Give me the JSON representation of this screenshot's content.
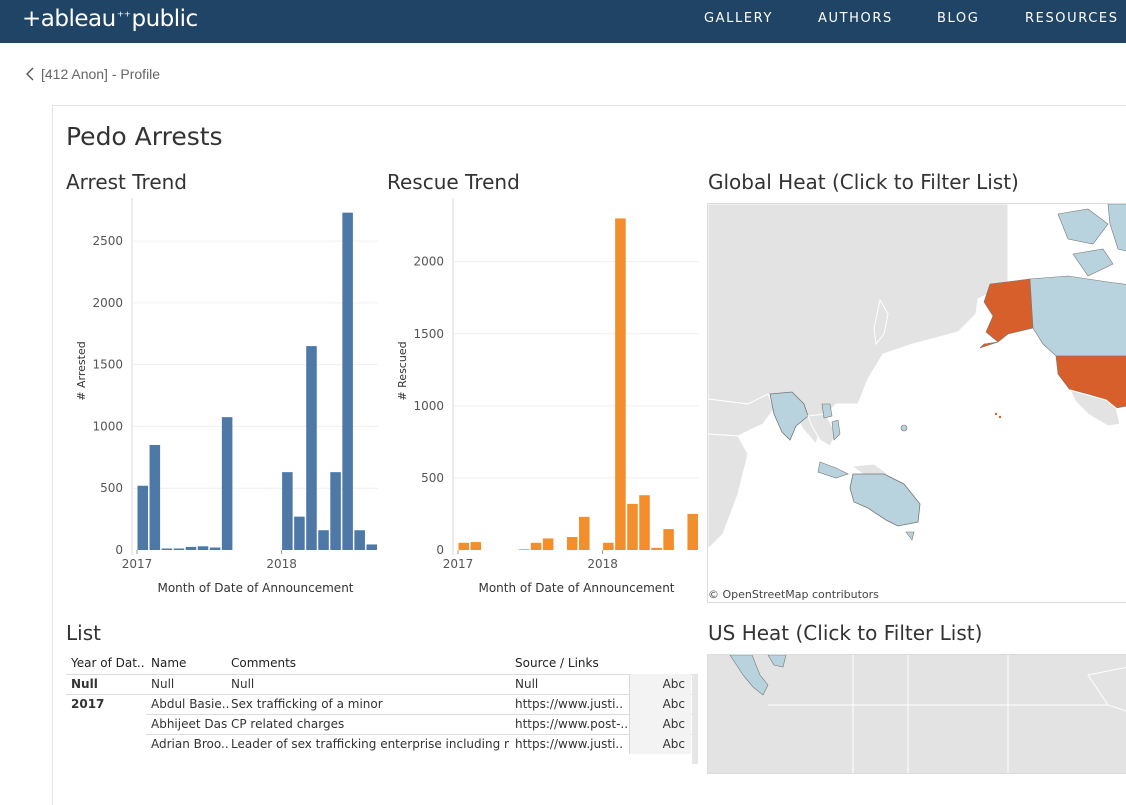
{
  "header": {
    "logo": "+ableau",
    "logo_rest": "public",
    "nav": [
      "GALLERY",
      "AUTHORS",
      "BLOG",
      "RESOURCES"
    ]
  },
  "breadcrumb": {
    "label": "[412 Anon] - Profile"
  },
  "dashboard": {
    "title": "Pedo Arrests",
    "arrest_title": "Arrest Trend",
    "rescue_title": "Rescue Trend",
    "global_title": "Global Heat (Click to Filter List)",
    "us_title": "US Heat (Click to Filter List)",
    "list_title": "List",
    "osm_credit": "© OpenStreetMap contributors"
  },
  "colors": {
    "arrest": "#4e79a7",
    "rescue": "#f28e2b",
    "highlight": "#d65f2c",
    "land_selected": "#b8d3dd",
    "land": "#e3e3e3"
  },
  "chart_data": [
    {
      "type": "bar",
      "title": "Arrest Trend",
      "xlabel": "Month of Date of Announcement",
      "ylabel": "# Arrested",
      "ylim": [
        0,
        2800
      ],
      "yticks": [
        0,
        500,
        1000,
        1500,
        2000,
        2500
      ],
      "xticks": [
        "2017",
        "2018"
      ],
      "x": [
        "2017-01",
        "2017-02",
        "2017-03",
        "2017-04",
        "2017-05",
        "2017-06",
        "2017-07",
        "2017-08",
        "2017-09",
        "2017-10",
        "2017-11",
        "2017-12",
        "2018-01",
        "2018-02",
        "2018-03",
        "2018-04",
        "2018-05",
        "2018-06",
        "2018-07",
        "2018-08"
      ],
      "values": [
        520,
        850,
        12,
        12,
        25,
        30,
        20,
        1075,
        0,
        0,
        0,
        0,
        630,
        270,
        1650,
        160,
        630,
        2730,
        160,
        45
      ]
    },
    {
      "type": "bar",
      "title": "Rescue Trend",
      "xlabel": "Month of Date of Announcement",
      "ylabel": "# Rescued",
      "ylim": [
        0,
        2400
      ],
      "yticks": [
        0,
        500,
        1000,
        1500,
        2000
      ],
      "xticks": [
        "2017",
        "2018"
      ],
      "x": [
        "2017-01",
        "2017-02",
        "2017-03",
        "2017-04",
        "2017-05",
        "2017-06",
        "2017-07",
        "2017-08",
        "2017-09",
        "2017-10",
        "2017-11",
        "2017-12",
        "2018-01",
        "2018-02",
        "2018-03",
        "2018-04",
        "2018-05",
        "2018-06",
        "2018-07",
        "2018-08"
      ],
      "values": [
        50,
        55,
        0,
        0,
        0,
        5,
        50,
        80,
        0,
        90,
        230,
        0,
        50,
        2300,
        320,
        380,
        15,
        145,
        0,
        250
      ]
    }
  ],
  "list": {
    "columns": [
      "Year of Dat..",
      "Name",
      "Comments",
      "Source / Links"
    ],
    "rows": [
      {
        "year": "Null",
        "name": "Null",
        "comments": "Null",
        "source": "Null",
        "abc": "Abc"
      },
      {
        "year": "2017",
        "name": "Abdul Basie..",
        "comments": "Sex trafficking of a minor",
        "source": "https://www.justi..",
        "abc": "Abc"
      },
      {
        "year": "",
        "name": "Abhijeet Das",
        "comments": "CP related charges",
        "source": "https://www.post-..",
        "abc": "Abc"
      },
      {
        "year": "",
        "name": "Adrian Broo..",
        "comments": "Leader of sex trafficking enterprise including mi..",
        "source": "https://www.justi..",
        "abc": "Abc"
      }
    ]
  }
}
